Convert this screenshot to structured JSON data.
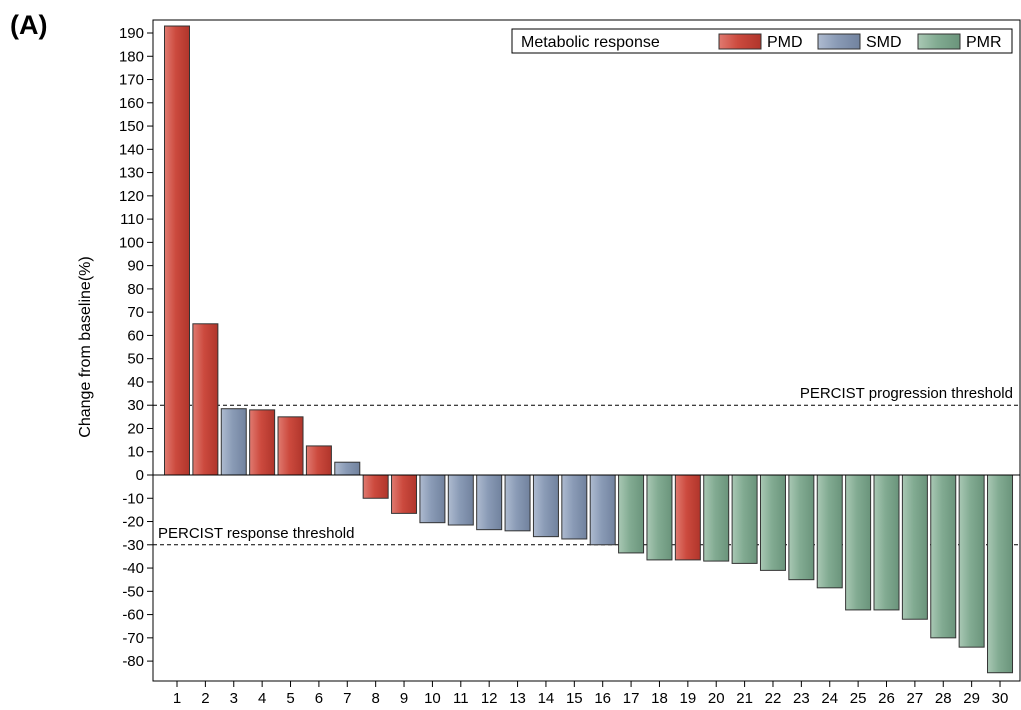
{
  "panel_label": "(A)",
  "chart_data": {
    "type": "bar",
    "ylabel": "Change from baseline(%)",
    "xlabel": "",
    "ylim": [
      -88,
      195
    ],
    "y_ticks": [
      190,
      180,
      170,
      160,
      150,
      140,
      130,
      120,
      110,
      100,
      90,
      80,
      70,
      60,
      50,
      40,
      30,
      20,
      10,
      0,
      -10,
      -20,
      -30,
      -40,
      -50,
      -60,
      -70,
      -80
    ],
    "categories": [
      "1",
      "2",
      "3",
      "4",
      "5",
      "6",
      "7",
      "8",
      "9",
      "10",
      "11",
      "12",
      "13",
      "14",
      "15",
      "16",
      "17",
      "18",
      "19",
      "20",
      "21",
      "22",
      "23",
      "24",
      "25",
      "26",
      "27",
      "28",
      "29",
      "30"
    ],
    "values": [
      193,
      65,
      28.5,
      28,
      25,
      12.5,
      5.5,
      -10,
      -16.5,
      -20.5,
      -21.5,
      -23.5,
      -24,
      -26.5,
      -27.5,
      -30,
      -33.5,
      -36.5,
      -36.5,
      -37,
      -38,
      -41,
      -45,
      -48.5,
      -58,
      -58,
      -62,
      -70,
      -74,
      -85
    ],
    "response": [
      "PMD",
      "PMD",
      "SMD",
      "PMD",
      "PMD",
      "PMD",
      "SMD",
      "PMD",
      "PMD",
      "SMD",
      "SMD",
      "SMD",
      "SMD",
      "SMD",
      "SMD",
      "SMD",
      "PMR",
      "PMR",
      "PMD",
      "PMR",
      "PMR",
      "PMR",
      "PMR",
      "PMR",
      "PMR",
      "PMR",
      "PMR",
      "PMR",
      "PMR",
      "PMR"
    ],
    "legend": {
      "title": "Metabolic response",
      "position": "top-right",
      "entries": [
        {
          "name": "PMD",
          "color": "#c8463c"
        },
        {
          "name": "SMD",
          "color": "#8496b0"
        },
        {
          "name": "PMR",
          "color": "#7fa88e"
        }
      ]
    },
    "reference_lines": [
      {
        "value": 30,
        "label": "PERCIST progression threshold",
        "style": "dashed"
      },
      {
        "value": -30,
        "label": "PERCIST response threshold",
        "style": "dashed"
      }
    ],
    "grid": false
  }
}
